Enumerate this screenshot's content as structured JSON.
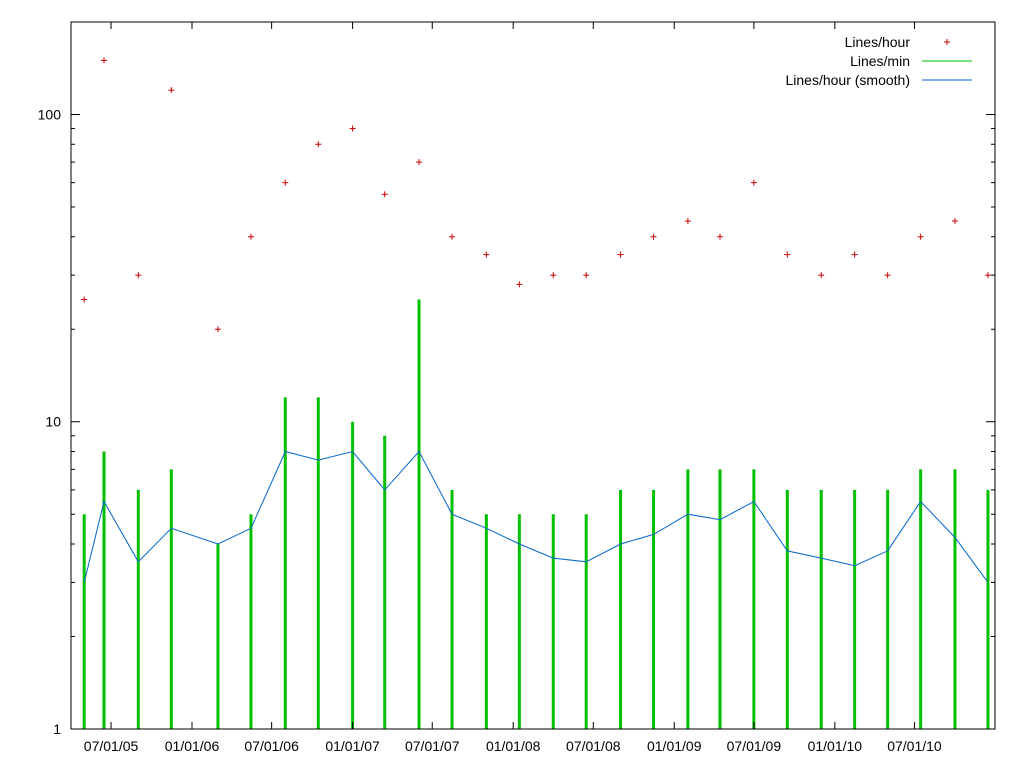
{
  "chart_data": {
    "type": "scatter",
    "title": "",
    "xlabel": "",
    "ylabel": "",
    "y_scale": "log",
    "ylim": [
      1,
      200
    ],
    "xlim": [
      "2005-04-01",
      "2010-12-31"
    ],
    "y_ticks": [
      {
        "value": 1,
        "label": "1"
      },
      {
        "value": 10,
        "label": "10"
      },
      {
        "value": 100,
        "label": "100"
      }
    ],
    "x_ticks": [
      {
        "value": "2005-07-01",
        "label": "07/01/05"
      },
      {
        "value": "2006-01-01",
        "label": "01/01/06"
      },
      {
        "value": "2006-07-01",
        "label": "07/01/06"
      },
      {
        "value": "2007-01-01",
        "label": "01/01/07"
      },
      {
        "value": "2007-07-01",
        "label": "07/01/07"
      },
      {
        "value": "2008-01-01",
        "label": "01/01/08"
      },
      {
        "value": "2008-07-01",
        "label": "07/01/08"
      },
      {
        "value": "2009-01-01",
        "label": "01/01/09"
      },
      {
        "value": "2009-07-01",
        "label": "07/01/09"
      },
      {
        "value": "2010-01-01",
        "label": "01/01/10"
      },
      {
        "value": "2010-07-01",
        "label": "07/01/10"
      }
    ],
    "legend_position": "top-right",
    "grid": false,
    "series": [
      {
        "name": "Lines/hour",
        "style": "points",
        "marker": "plus",
        "color": "#cc0000",
        "x": [
          "2005-05-01",
          "2005-06-15",
          "2005-09-01",
          "2005-11-15",
          "2006-03-01",
          "2006-05-15",
          "2006-08-01",
          "2006-10-15",
          "2007-01-01",
          "2007-03-15",
          "2007-06-01",
          "2007-08-15",
          "2007-11-01",
          "2008-01-15",
          "2008-04-01",
          "2008-06-15",
          "2008-09-01",
          "2008-11-15",
          "2009-02-01",
          "2009-04-15",
          "2009-07-01",
          "2009-09-15",
          "2009-12-01",
          "2010-02-15",
          "2010-05-01",
          "2010-07-15",
          "2010-10-01",
          "2010-12-15"
        ],
        "values": [
          25,
          150,
          30,
          120,
          20,
          40,
          60,
          80,
          90,
          55,
          70,
          40,
          35,
          28,
          30,
          30,
          35,
          40,
          45,
          40,
          60,
          35,
          30,
          35,
          30,
          40,
          45,
          30
        ]
      },
      {
        "name": "Lines/min",
        "style": "impulses",
        "color": "#00c000",
        "x": [
          "2005-05-01",
          "2005-06-15",
          "2005-09-01",
          "2005-11-15",
          "2006-03-01",
          "2006-05-15",
          "2006-08-01",
          "2006-10-15",
          "2007-01-01",
          "2007-03-15",
          "2007-06-01",
          "2007-08-15",
          "2007-11-01",
          "2008-01-15",
          "2008-04-01",
          "2008-06-15",
          "2008-09-01",
          "2008-11-15",
          "2009-02-01",
          "2009-04-15",
          "2009-07-01",
          "2009-09-15",
          "2009-12-01",
          "2010-02-15",
          "2010-05-01",
          "2010-07-15",
          "2010-10-01",
          "2010-12-15"
        ],
        "values": [
          5,
          8,
          6,
          7,
          4,
          5,
          12,
          12,
          10,
          9,
          25,
          6,
          5,
          5,
          5,
          5,
          6,
          6,
          7,
          7,
          7,
          6,
          6,
          6,
          6,
          7,
          7,
          6
        ]
      },
      {
        "name": "Lines/hour (smooth)",
        "style": "line",
        "color": "#0066cc",
        "x": [
          "2005-05-01",
          "2005-06-15",
          "2005-09-01",
          "2005-11-15",
          "2006-03-01",
          "2006-05-15",
          "2006-08-01",
          "2006-10-15",
          "2007-01-01",
          "2007-03-15",
          "2007-06-01",
          "2007-08-15",
          "2007-11-01",
          "2008-01-15",
          "2008-04-01",
          "2008-06-15",
          "2008-09-01",
          "2008-11-15",
          "2009-02-01",
          "2009-04-15",
          "2009-07-01",
          "2009-09-15",
          "2009-12-01",
          "2010-02-15",
          "2010-05-01",
          "2010-07-15",
          "2010-10-01",
          "2010-12-15"
        ],
        "values": [
          3.0,
          5.5,
          3.5,
          4.5,
          4.0,
          4.5,
          8.0,
          7.5,
          8.0,
          6.0,
          8.0,
          5.0,
          4.5,
          4.0,
          3.6,
          3.5,
          4.0,
          4.3,
          5.0,
          4.8,
          5.5,
          3.8,
          3.6,
          3.4,
          3.8,
          5.5,
          4.2,
          3.0
        ]
      }
    ]
  }
}
